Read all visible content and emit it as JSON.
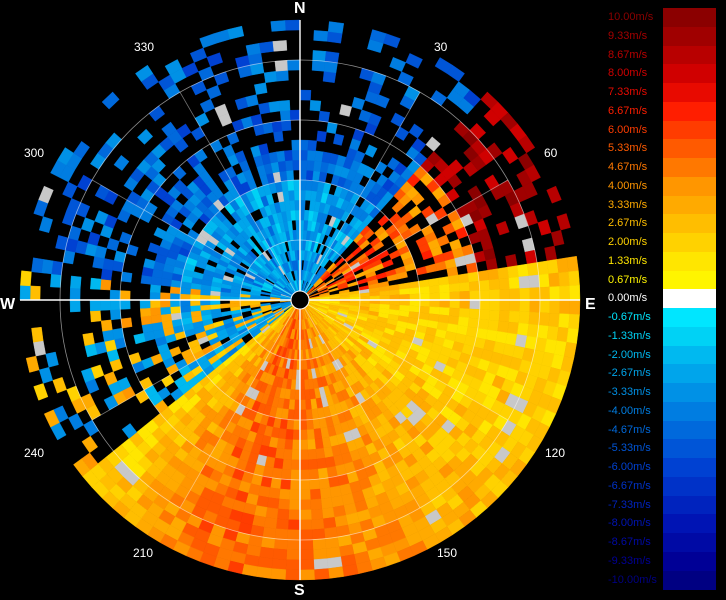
{
  "compass": {
    "north": "N",
    "south": "S",
    "east": "E",
    "west": "W"
  },
  "degree_labels": [
    "30",
    "60",
    "120",
    "150",
    "210",
    "240",
    "300",
    "330"
  ],
  "legend": [
    {
      "label": "10.00m/s",
      "color": "#8b0000",
      "text_color": "#8b0000"
    },
    {
      "label": "9.33m/s",
      "color": "#a00000",
      "text_color": "#a40000"
    },
    {
      "label": "8.67m/s",
      "color": "#b80000",
      "text_color": "#b80000"
    },
    {
      "label": "8.00m/s",
      "color": "#d00000",
      "text_color": "#d00000"
    },
    {
      "label": "7.33m/s",
      "color": "#e80a00",
      "text_color": "#e80a00"
    },
    {
      "label": "6.67m/s",
      "color": "#ff1e00",
      "text_color": "#ff1e00"
    },
    {
      "label": "6.00m/s",
      "color": "#ff3c00",
      "text_color": "#ff3c00"
    },
    {
      "label": "5.33m/s",
      "color": "#ff5a00",
      "text_color": "#ff5a00"
    },
    {
      "label": "4.67m/s",
      "color": "#ff7800",
      "text_color": "#ff7800"
    },
    {
      "label": "4.00m/s",
      "color": "#ff9600",
      "text_color": "#ff9600"
    },
    {
      "label": "3.33m/s",
      "color": "#ffaa00",
      "text_color": "#ffaa00"
    },
    {
      "label": "2.67m/s",
      "color": "#ffbe00",
      "text_color": "#ffbe00"
    },
    {
      "label": "2.00m/s",
      "color": "#ffd200",
      "text_color": "#ffd200"
    },
    {
      "label": "1.33m/s",
      "color": "#ffe600",
      "text_color": "#ffe600"
    },
    {
      "label": "0.67m/s",
      "color": "#fff500",
      "text_color": "#fff500"
    },
    {
      "label": "0.00m/s",
      "color": "#ffffff",
      "text_color": "#ffffff"
    },
    {
      "label": "-0.67m/s",
      "color": "#00e6ff",
      "text_color": "#00e6ff"
    },
    {
      "label": "-1.33m/s",
      "color": "#00d2f5",
      "text_color": "#00d2f5"
    },
    {
      "label": "-2.00m/s",
      "color": "#00b9f0",
      "text_color": "#00b9f0"
    },
    {
      "label": "-2.67m/s",
      "color": "#00a5eb",
      "text_color": "#00a5eb"
    },
    {
      "label": "-3.33m/s",
      "color": "#0091e6",
      "text_color": "#0091e6"
    },
    {
      "label": "-4.00m/s",
      "color": "#007de1",
      "text_color": "#007de1"
    },
    {
      "label": "-4.67m/s",
      "color": "#0069dc",
      "text_color": "#0069dc"
    },
    {
      "label": "-5.33m/s",
      "color": "#0055d7",
      "text_color": "#0055d7"
    },
    {
      "label": "-6.00m/s",
      "color": "#0041d2",
      "text_color": "#0041d2"
    },
    {
      "label": "-6.67m/s",
      "color": "#0032c8",
      "text_color": "#0032c8"
    },
    {
      "label": "-7.33m/s",
      "color": "#0023be",
      "text_color": "#0023be"
    },
    {
      "label": "-8.00m/s",
      "color": "#0014b4",
      "text_color": "#0014b4"
    },
    {
      "label": "-8.67m/s",
      "color": "#000aa5",
      "text_color": "#000aa5"
    },
    {
      "label": "-9.33m/s",
      "color": "#000096",
      "text_color": "#000096"
    },
    {
      "label": "-10.00m/s",
      "color": "#000082",
      "text_color": "#000082"
    }
  ],
  "range_ring_count": 4,
  "spoke_step_deg": 30
}
